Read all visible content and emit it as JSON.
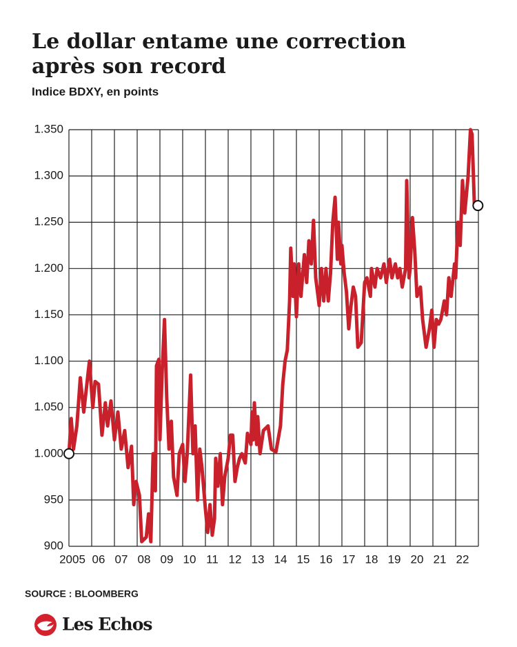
{
  "chart_data": {
    "type": "line",
    "title": "Le dollar entame une correction",
    "title_line2": "après son record",
    "subtitle": "Indice BDXY, en points",
    "source": "SOURCE : BLOOMBERG",
    "brand": "Les Echos",
    "xlim": [
      2005,
      2023
    ],
    "xticks": [
      {
        "value": 2005,
        "label": "2005"
      },
      {
        "value": 2006,
        "label": "06"
      },
      {
        "value": 2007,
        "label": "07"
      },
      {
        "value": 2008,
        "label": "08"
      },
      {
        "value": 2009,
        "label": "09"
      },
      {
        "value": 2010,
        "label": "10"
      },
      {
        "value": 2011,
        "label": "11"
      },
      {
        "value": 2012,
        "label": "12"
      },
      {
        "value": 2013,
        "label": "13"
      },
      {
        "value": 2014,
        "label": "14"
      },
      {
        "value": 2015,
        "label": "15"
      },
      {
        "value": 2016,
        "label": "16"
      },
      {
        "value": 2017,
        "label": "17"
      },
      {
        "value": 2018,
        "label": "18"
      },
      {
        "value": 2019,
        "label": "19"
      },
      {
        "value": 2020,
        "label": "20"
      },
      {
        "value": 2021,
        "label": "21"
      },
      {
        "value": 2022,
        "label": "22"
      }
    ],
    "ylim": [
      900,
      1350
    ],
    "yticks": [
      900,
      950,
      {
        "value": 1000,
        "label": "1.000"
      },
      {
        "value": 1050,
        "label": "1.050"
      },
      {
        "value": 1100,
        "label": "1.100"
      },
      {
        "value": 1150,
        "label": "1.150"
      },
      {
        "value": 1200,
        "label": "1.200"
      },
      {
        "value": 1250,
        "label": "1.250"
      },
      {
        "value": 1300,
        "label": "1.300"
      },
      {
        "value": 1350,
        "label": "1.350"
      }
    ],
    "grid": true,
    "color": "#c8212b",
    "x": [
      2005.0,
      2005.1,
      2005.2,
      2005.35,
      2005.5,
      2005.65,
      2005.9,
      2006.05,
      2006.15,
      2006.3,
      2006.45,
      2006.6,
      2006.7,
      2006.85,
      2007.0,
      2007.15,
      2007.3,
      2007.45,
      2007.6,
      2007.75,
      2007.85,
      2007.95,
      2008.1,
      2008.2,
      2008.4,
      2008.5,
      2008.6,
      2008.7,
      2008.8,
      2008.85,
      2008.95,
      2009.0,
      2009.1,
      2009.2,
      2009.3,
      2009.4,
      2009.5,
      2009.6,
      2009.75,
      2009.85,
      2010.0,
      2010.1,
      2010.2,
      2010.35,
      2010.45,
      2010.55,
      2010.65,
      2010.75,
      2010.85,
      2011.0,
      2011.1,
      2011.2,
      2011.3,
      2011.4,
      2011.45,
      2011.55,
      2011.65,
      2011.75,
      2011.85,
      2012.0,
      2012.1,
      2012.2,
      2012.3,
      2012.4,
      2012.5,
      2012.6,
      2012.75,
      2012.85,
      2013.0,
      2013.05,
      2013.1,
      2013.15,
      2013.25,
      2013.3,
      2013.4,
      2013.55,
      2013.75,
      2013.9,
      2014.1,
      2014.3,
      2014.4,
      2014.5,
      2014.6,
      2014.7,
      2014.75,
      2014.85,
      2014.9,
      2015.0,
      2015.1,
      2015.2,
      2015.35,
      2015.45,
      2015.55,
      2015.65,
      2015.75,
      2015.85,
      2015.95,
      2016.0,
      2016.1,
      2016.2,
      2016.3,
      2016.4,
      2016.5,
      2016.6,
      2016.7,
      2016.8,
      2016.85,
      2016.95,
      2017.0,
      2017.1,
      2017.2,
      2017.3,
      2017.4,
      2017.5,
      2017.6,
      2017.7,
      2017.85,
      2018.0,
      2018.1,
      2018.25,
      2018.3,
      2018.45,
      2018.55,
      2018.7,
      2018.85,
      2018.95,
      2019.1,
      2019.2,
      2019.35,
      2019.45,
      2019.55,
      2019.65,
      2019.8,
      2019.85,
      2019.95,
      2020.0,
      2020.1,
      2020.2,
      2020.3,
      2020.45,
      2020.55,
      2020.7,
      2020.85,
      2020.95,
      2021.05,
      2021.15,
      2021.25,
      2021.35,
      2021.5,
      2021.6,
      2021.7,
      2021.8,
      2021.95,
      2022.0,
      2022.1,
      2022.2,
      2022.3,
      2022.4,
      2022.55,
      2022.65,
      2022.72,
      2022.82,
      2022.98
    ],
    "values": [
      1000,
      1038,
      1005,
      1030,
      1082,
      1045,
      1100,
      1050,
      1078,
      1075,
      1020,
      1055,
      1030,
      1057,
      1015,
      1045,
      1005,
      1025,
      985,
      1008,
      945,
      970,
      955,
      905,
      910,
      935,
      905,
      1000,
      960,
      1095,
      1102,
      1015,
      1090,
      1145,
      1060,
      1005,
      1035,
      975,
      955,
      1000,
      1010,
      970,
      1000,
      1085,
      1000,
      1030,
      950,
      1005,
      985,
      940,
      915,
      945,
      912,
      930,
      995,
      965,
      1000,
      945,
      975,
      995,
      1020,
      1020,
      970,
      985,
      995,
      1000,
      990,
      1022,
      1010,
      1045,
      1015,
      1055,
      1010,
      1040,
      1000,
      1025,
      1030,
      1005,
      1002,
      1030,
      1075,
      1100,
      1112,
      1165,
      1222,
      1170,
      1205,
      1148,
      1205,
      1170,
      1215,
      1185,
      1230,
      1205,
      1252,
      1190,
      1170,
      1160,
      1200,
      1165,
      1200,
      1165,
      1195,
      1250,
      1277,
      1210,
      1250,
      1205,
      1225,
      1195,
      1175,
      1135,
      1160,
      1180,
      1170,
      1115,
      1120,
      1185,
      1190,
      1170,
      1200,
      1180,
      1200,
      1190,
      1205,
      1185,
      1210,
      1190,
      1205,
      1190,
      1200,
      1180,
      1200,
      1295,
      1190,
      1200,
      1255,
      1220,
      1170,
      1180,
      1145,
      1115,
      1135,
      1155,
      1115,
      1145,
      1140,
      1145,
      1165,
      1150,
      1190,
      1170,
      1205,
      1190,
      1250,
      1225,
      1295,
      1260,
      1300,
      1350,
      1345,
      1270,
      1268
    ]
  }
}
